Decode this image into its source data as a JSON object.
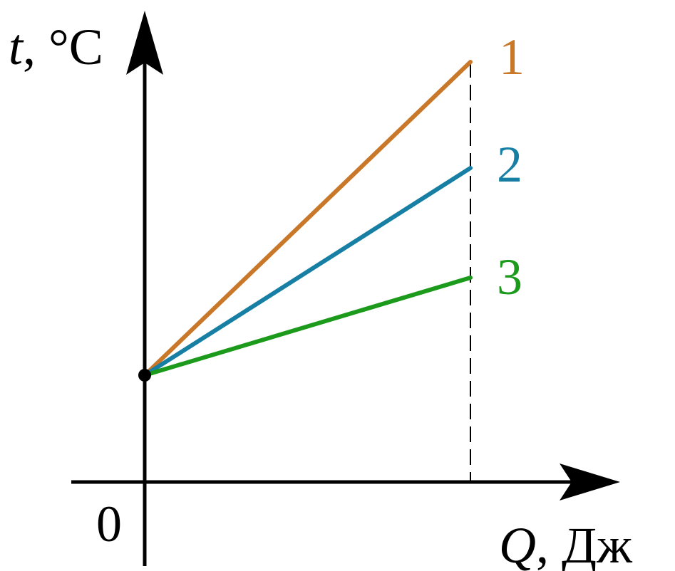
{
  "axes": {
    "y_label": {
      "variable": "t",
      "unit": ", °C"
    },
    "x_label": {
      "variable": "Q",
      "unit": ", Дж"
    },
    "origin": "0"
  },
  "lines": [
    {
      "label": "1"
    },
    {
      "label": "2"
    },
    {
      "label": "3"
    }
  ]
}
